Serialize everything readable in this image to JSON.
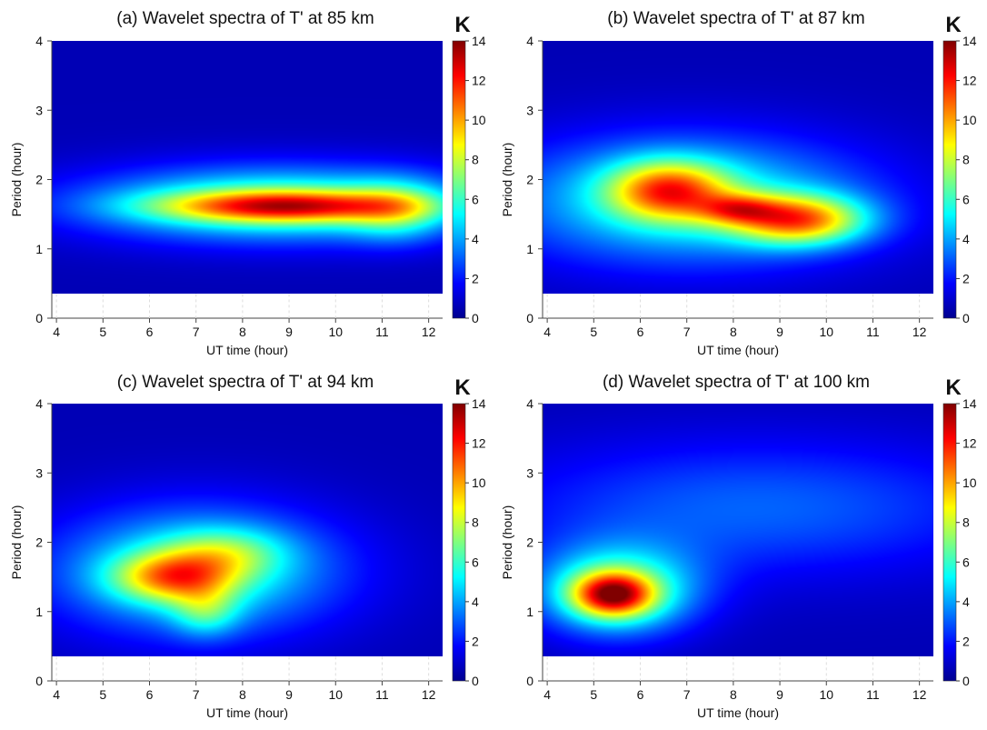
{
  "colorbar": {
    "unit": "K",
    "min": 0,
    "max": 14,
    "ticks": [
      "0",
      "2",
      "4",
      "6",
      "8",
      "10",
      "12",
      "14"
    ]
  },
  "chart_data": [
    {
      "type": "heatmap",
      "title": "(a) Wavelet spectra of T' at 85 km",
      "xlabel": "UT time (hour)",
      "ylabel": "Period (hour)",
      "xlim": [
        3.9,
        12.3
      ],
      "ylim": [
        0,
        4
      ],
      "data_ylim": [
        0.35,
        4
      ],
      "x_ticks": [
        "4",
        "5",
        "6",
        "7",
        "8",
        "9",
        "10",
        "11",
        "12"
      ],
      "y_ticks": [
        "0",
        "1",
        "2",
        "3",
        "4"
      ],
      "colorbar_range": [
        0,
        14
      ],
      "blobs": [
        {
          "x": 8.8,
          "y": 1.65,
          "sx": 3.0,
          "sy": 0.38,
          "amp": 6
        },
        {
          "x": 8.9,
          "y": 1.62,
          "sx": 1.9,
          "sy": 0.16,
          "amp": 7
        },
        {
          "x": 11.3,
          "y": 1.55,
          "sx": 0.7,
          "sy": 0.3,
          "amp": 3
        }
      ]
    },
    {
      "type": "heatmap",
      "title": "(b) Wavelet spectra of T' at 87 km",
      "xlabel": "UT time (hour)",
      "ylabel": "Period (hour)",
      "xlim": [
        3.9,
        12.3
      ],
      "ylim": [
        0,
        4
      ],
      "data_ylim": [
        0.35,
        4
      ],
      "x_ticks": [
        "4",
        "5",
        "6",
        "7",
        "8",
        "9",
        "10",
        "11",
        "12"
      ],
      "y_ticks": [
        "0",
        "1",
        "2",
        "3",
        "4"
      ],
      "colorbar_range": [
        0,
        14
      ],
      "blobs": [
        {
          "x": 7.0,
          "y": 1.7,
          "sx": 2.8,
          "sy": 0.65,
          "amp": 5
        },
        {
          "x": 6.6,
          "y": 1.85,
          "sx": 0.9,
          "sy": 0.3,
          "amp": 7
        },
        {
          "x": 9.4,
          "y": 1.42,
          "sx": 1.0,
          "sy": 0.25,
          "amp": 8
        },
        {
          "x": 8.1,
          "y": 1.58,
          "sx": 0.6,
          "sy": 0.15,
          "amp": 4
        }
      ]
    },
    {
      "type": "heatmap",
      "title": "(c) Wavelet spectra of T' at 94 km",
      "xlabel": "UT time (hour)",
      "ylabel": "Period (hour)",
      "xlim": [
        3.9,
        12.3
      ],
      "ylim": [
        0,
        4
      ],
      "data_ylim": [
        0.35,
        4
      ],
      "x_ticks": [
        "4",
        "5",
        "6",
        "7",
        "8",
        "9",
        "10",
        "11",
        "12"
      ],
      "y_ticks": [
        "0",
        "1",
        "2",
        "3",
        "4"
      ],
      "colorbar_range": [
        0,
        14
      ],
      "blobs": [
        {
          "x": 7.0,
          "y": 1.6,
          "sx": 2.2,
          "sy": 0.65,
          "amp": 5
        },
        {
          "x": 6.5,
          "y": 1.5,
          "sx": 0.9,
          "sy": 0.25,
          "amp": 6
        },
        {
          "x": 7.6,
          "y": 1.85,
          "sx": 0.9,
          "sy": 0.25,
          "amp": 3
        },
        {
          "x": 7.2,
          "y": 1.0,
          "sx": 0.5,
          "sy": 0.25,
          "amp": 3
        }
      ]
    },
    {
      "type": "heatmap",
      "title": "(d) Wavelet spectra of T' at 100 km",
      "xlabel": "UT time (hour)",
      "ylabel": "Period (hour)",
      "xlim": [
        3.9,
        12.3
      ],
      "ylim": [
        0,
        4
      ],
      "data_ylim": [
        0.35,
        4
      ],
      "x_ticks": [
        "4",
        "5",
        "6",
        "7",
        "8",
        "9",
        "10",
        "11",
        "12"
      ],
      "y_ticks": [
        "0",
        "1",
        "2",
        "3",
        "4"
      ],
      "colorbar_range": [
        0,
        14
      ],
      "blobs": [
        {
          "x": 5.5,
          "y": 1.3,
          "sx": 1.2,
          "sy": 0.45,
          "amp": 6
        },
        {
          "x": 5.4,
          "y": 1.25,
          "sx": 0.6,
          "sy": 0.22,
          "amp": 8
        },
        {
          "x": 8.5,
          "y": 2.5,
          "sx": 4.0,
          "sy": 0.7,
          "amp": 2.5
        }
      ]
    }
  ]
}
